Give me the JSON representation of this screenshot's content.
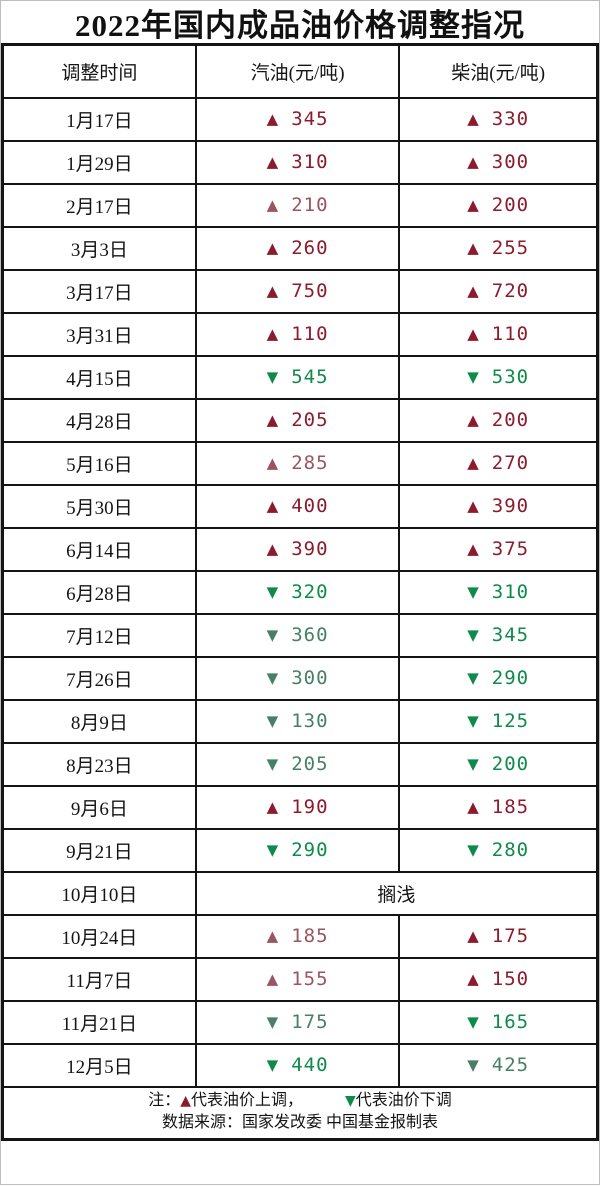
{
  "chart_data": {
    "type": "table",
    "title": "2022年国内成品油价格调整指况",
    "columns": [
      "调整时间",
      "汽油(元/吨)",
      "柴油(元/吨)"
    ],
    "unit": "元/吨",
    "rows": [
      {
        "date": "1月17日",
        "gasoline": {
          "dir": "up",
          "value": 345,
          "tone": "dark"
        },
        "diesel": {
          "dir": "up",
          "value": 330,
          "tone": "dark"
        }
      },
      {
        "date": "1月29日",
        "gasoline": {
          "dir": "up",
          "value": 310,
          "tone": "dark"
        },
        "diesel": {
          "dir": "up",
          "value": 300,
          "tone": "dark"
        }
      },
      {
        "date": "2月17日",
        "gasoline": {
          "dir": "up",
          "value": 210,
          "tone": "light"
        },
        "diesel": {
          "dir": "up",
          "value": 200,
          "tone": "dark"
        }
      },
      {
        "date": "3月3日",
        "gasoline": {
          "dir": "up",
          "value": 260,
          "tone": "dark"
        },
        "diesel": {
          "dir": "up",
          "value": 255,
          "tone": "dark"
        }
      },
      {
        "date": "3月17日",
        "gasoline": {
          "dir": "up",
          "value": 750,
          "tone": "dark"
        },
        "diesel": {
          "dir": "up",
          "value": 720,
          "tone": "dark"
        }
      },
      {
        "date": "3月31日",
        "gasoline": {
          "dir": "up",
          "value": 110,
          "tone": "dark"
        },
        "diesel": {
          "dir": "up",
          "value": 110,
          "tone": "dark"
        }
      },
      {
        "date": "4月15日",
        "gasoline": {
          "dir": "down",
          "value": 545,
          "tone": "dark"
        },
        "diesel": {
          "dir": "down",
          "value": 530,
          "tone": "dark"
        }
      },
      {
        "date": "4月28日",
        "gasoline": {
          "dir": "up",
          "value": 205,
          "tone": "dark"
        },
        "diesel": {
          "dir": "up",
          "value": 200,
          "tone": "dark"
        }
      },
      {
        "date": "5月16日",
        "gasoline": {
          "dir": "up",
          "value": 285,
          "tone": "light"
        },
        "diesel": {
          "dir": "up",
          "value": 270,
          "tone": "dark"
        }
      },
      {
        "date": "5月30日",
        "gasoline": {
          "dir": "up",
          "value": 400,
          "tone": "dark"
        },
        "diesel": {
          "dir": "up",
          "value": 390,
          "tone": "dark"
        }
      },
      {
        "date": "6月14日",
        "gasoline": {
          "dir": "up",
          "value": 390,
          "tone": "dark"
        },
        "diesel": {
          "dir": "up",
          "value": 375,
          "tone": "dark"
        }
      },
      {
        "date": "6月28日",
        "gasoline": {
          "dir": "down",
          "value": 320,
          "tone": "dark"
        },
        "diesel": {
          "dir": "down",
          "value": 310,
          "tone": "dark"
        }
      },
      {
        "date": "7月12日",
        "gasoline": {
          "dir": "down",
          "value": 360,
          "tone": "light"
        },
        "diesel": {
          "dir": "down",
          "value": 345,
          "tone": "dark"
        }
      },
      {
        "date": "7月26日",
        "gasoline": {
          "dir": "down",
          "value": 300,
          "tone": "light"
        },
        "diesel": {
          "dir": "down",
          "value": 290,
          "tone": "dark"
        }
      },
      {
        "date": "8月9日",
        "gasoline": {
          "dir": "down",
          "value": 130,
          "tone": "light"
        },
        "diesel": {
          "dir": "down",
          "value": 125,
          "tone": "dark"
        }
      },
      {
        "date": "8月23日",
        "gasoline": {
          "dir": "down",
          "value": 205,
          "tone": "light"
        },
        "diesel": {
          "dir": "down",
          "value": 200,
          "tone": "dark"
        }
      },
      {
        "date": "9月6日",
        "gasoline": {
          "dir": "up",
          "value": 190,
          "tone": "dark"
        },
        "diesel": {
          "dir": "up",
          "value": 185,
          "tone": "dark"
        }
      },
      {
        "date": "9月21日",
        "gasoline": {
          "dir": "down",
          "value": 290,
          "tone": "dark"
        },
        "diesel": {
          "dir": "down",
          "value": 280,
          "tone": "dark"
        }
      },
      {
        "date": "10月10日",
        "merged": "搁浅"
      },
      {
        "date": "10月24日",
        "gasoline": {
          "dir": "up",
          "value": 185,
          "tone": "light"
        },
        "diesel": {
          "dir": "up",
          "value": 175,
          "tone": "dark"
        }
      },
      {
        "date": "11月7日",
        "gasoline": {
          "dir": "up",
          "value": 155,
          "tone": "light"
        },
        "diesel": {
          "dir": "up",
          "value": 150,
          "tone": "dark"
        }
      },
      {
        "date": "11月21日",
        "gasoline": {
          "dir": "down",
          "value": 175,
          "tone": "light"
        },
        "diesel": {
          "dir": "down",
          "value": 165,
          "tone": "dark"
        }
      },
      {
        "date": "12月5日",
        "gasoline": {
          "dir": "down",
          "value": 440,
          "tone": "dark"
        },
        "diesel": {
          "dir": "down",
          "value": 425,
          "tone": "light"
        }
      }
    ],
    "note": "注：▲代表油价上调，▼代表油价下调",
    "source": "数据来源：国家发改委 中国基金报制表",
    "legend_position": "bottom",
    "grid": true
  },
  "symbols": {
    "up": "▲",
    "down": "▼"
  },
  "footer": {
    "note_prefix": "注：",
    "up_label": "代表油价上调，",
    "down_label": "代表油价下调",
    "source_line": "数据来源：国家发改委  中国基金报制表"
  },
  "colors": {
    "up_dark": "#8c1b2d",
    "up_light": "#9a5561",
    "down_dark": "#0e8b4b",
    "down_light": "#478066",
    "border": "#141414"
  }
}
